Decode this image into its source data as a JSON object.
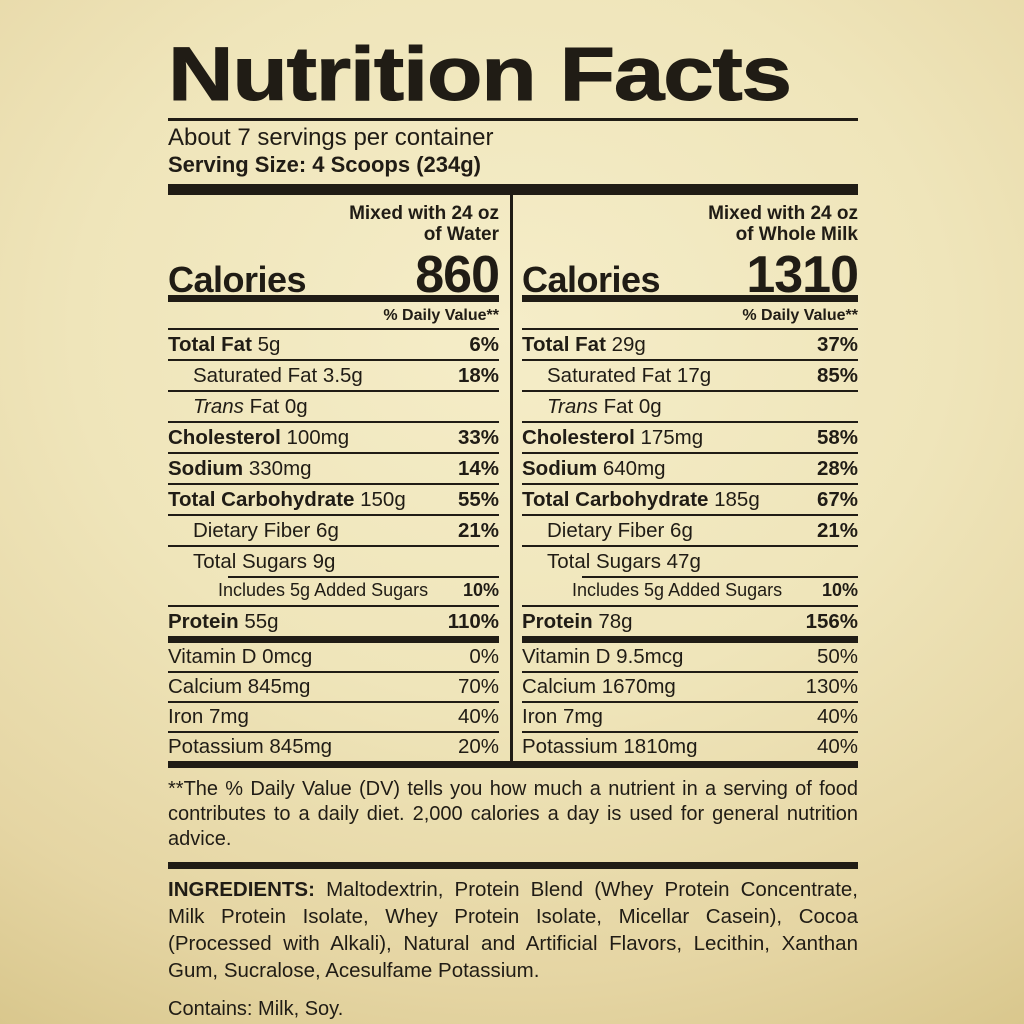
{
  "header": {
    "title": "Nutrition Facts",
    "servings": "About 7 servings per container",
    "serving_size": "Serving Size: 4 Scoops (234g)"
  },
  "columns": [
    {
      "mixed_line1": "Mixed with 24 oz",
      "mixed_line2": "of Water",
      "calories_label": "Calories",
      "calories_value": "860",
      "daily_value_header": "% Daily Value**",
      "nutrients": [
        {
          "label": "Total Fat",
          "labelBold": true,
          "value": "5g",
          "pct": "6%",
          "pctBold": true,
          "indent": 0
        },
        {
          "label": "Saturated Fat",
          "value": "3.5g",
          "pct": "18%",
          "pctBold": true,
          "indent": 1
        },
        {
          "label": "Trans",
          "labelItalic": true,
          "value": "Fat 0g",
          "pct": "",
          "indent": 1
        },
        {
          "label": "Cholesterol",
          "labelBold": true,
          "value": "100mg",
          "pct": "33%",
          "pctBold": true,
          "indent": 0
        },
        {
          "label": "Sodium",
          "labelBold": true,
          "value": "330mg",
          "pct": "14%",
          "pctBold": true,
          "indent": 0
        },
        {
          "label": "Total Carbohydrate",
          "labelBold": true,
          "value": "150g",
          "pct": "55%",
          "pctBold": true,
          "indent": 0
        },
        {
          "label": "Dietary Fiber",
          "value": "6g",
          "pct": "21%",
          "pctBold": true,
          "indent": 1
        },
        {
          "label": "Total Sugars",
          "value": "9g",
          "pct": "",
          "indent": 1
        },
        {
          "label": "Includes 5g Added Sugars",
          "value": "",
          "pct": "10%",
          "pctBold": true,
          "indent": 2,
          "small": true,
          "sepIndent": true
        },
        {
          "label": "Protein",
          "labelBold": true,
          "value": "55g",
          "pct": "110%",
          "pctBold": true,
          "indent": 0
        }
      ],
      "vitamins": [
        {
          "label": "Vitamin D 0mcg",
          "pct": "0%"
        },
        {
          "label": "Calcium 845mg",
          "pct": "70%"
        },
        {
          "label": "Iron 7mg",
          "pct": "40%"
        },
        {
          "label": "Potassium 845mg",
          "pct": "20%"
        }
      ]
    },
    {
      "mixed_line1": "Mixed with 24 oz",
      "mixed_line2": "of Whole Milk",
      "calories_label": "Calories",
      "calories_value": "1310",
      "daily_value_header": "% Daily Value**",
      "nutrients": [
        {
          "label": "Total Fat",
          "labelBold": true,
          "value": "29g",
          "pct": "37%",
          "pctBold": true,
          "indent": 0
        },
        {
          "label": "Saturated Fat",
          "value": "17g",
          "pct": "85%",
          "pctBold": true,
          "indent": 1
        },
        {
          "label": "Trans",
          "labelItalic": true,
          "value": "Fat 0g",
          "pct": "",
          "indent": 1
        },
        {
          "label": "Cholesterol",
          "labelBold": true,
          "value": "175mg",
          "pct": "58%",
          "pctBold": true,
          "indent": 0
        },
        {
          "label": "Sodium",
          "labelBold": true,
          "value": "640mg",
          "pct": "28%",
          "pctBold": true,
          "indent": 0
        },
        {
          "label": "Total Carbohydrate",
          "labelBold": true,
          "value": "185g",
          "pct": "67%",
          "pctBold": true,
          "indent": 0
        },
        {
          "label": "Dietary Fiber",
          "value": "6g",
          "pct": "21%",
          "pctBold": true,
          "indent": 1
        },
        {
          "label": "Total Sugars",
          "value": "47g",
          "pct": "",
          "indent": 1
        },
        {
          "label": "Includes 5g Added Sugars",
          "value": "",
          "pct": "10%",
          "pctBold": true,
          "indent": 2,
          "small": true,
          "sepIndent": true
        },
        {
          "label": "Protein",
          "labelBold": true,
          "value": "78g",
          "pct": "156%",
          "pctBold": true,
          "indent": 0
        }
      ],
      "vitamins": [
        {
          "label": "Vitamin D 9.5mcg",
          "pct": "50%"
        },
        {
          "label": "Calcium 1670mg",
          "pct": "130%"
        },
        {
          "label": "Iron 7mg",
          "pct": "40%"
        },
        {
          "label": "Potassium 1810mg",
          "pct": "40%"
        }
      ]
    }
  ],
  "footnote": "**The % Daily Value (DV) tells you how much a nutrient in a serving of food contributes to a daily diet. 2,000 calories a day is used for general nutrition advice.",
  "ingredients": {
    "label": "INGREDIENTS:",
    "text": "Maltodextrin, Protein Blend (Whey Protein Concentrate, Milk Protein Isolate, Whey Protein Isolate, Micellar Casein), Cocoa (Processed with Alkali), Natural and Artificial Flavors, Lecithin, Xanthan Gum, Sucralose, Acesulfame Potassium."
  },
  "contains": "Contains: Milk, Soy.",
  "colors": {
    "background_center": "#f5edc8",
    "background_edge": "#d9c78d",
    "ink": "#201c15"
  }
}
